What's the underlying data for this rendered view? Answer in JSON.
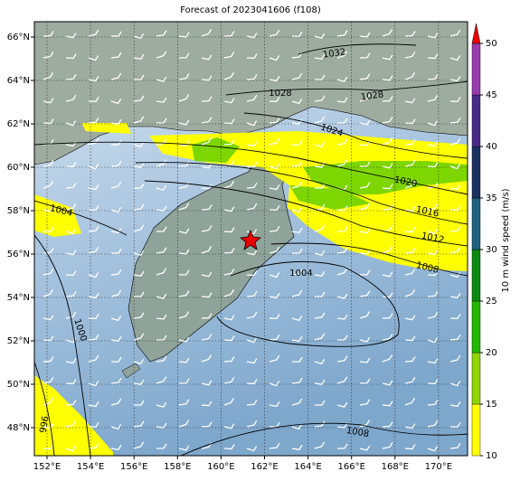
{
  "title": "Forecast of 2023041606 (f108)",
  "lon_labels": [
    "152°E",
    "154°E",
    "156°E",
    "158°E",
    "160°E",
    "162°E",
    "164°E",
    "166°E",
    "168°E",
    "170°E"
  ],
  "lat_labels": [
    "66°N",
    "64°N",
    "62°N",
    "60°N",
    "58°N",
    "56°N",
    "54°N",
    "52°N",
    "50°N",
    "48°N"
  ],
  "colorbar": {
    "label": "10 m wind speed (m/s)",
    "ticks": [
      10,
      15,
      20,
      25,
      30,
      35,
      40,
      45,
      50
    ]
  },
  "isobar_labels": [
    "1032",
    "1028",
    "1028",
    "1024",
    "1020",
    "1016",
    "1012",
    "1008",
    "1004",
    "1004",
    "1000",
    "996",
    "1008"
  ]
}
